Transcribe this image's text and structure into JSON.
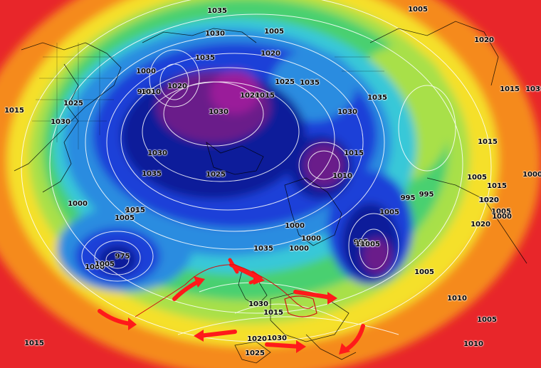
{
  "map": {
    "colors": {
      "outer_red": "#e8262a",
      "orange": "#f58a1f",
      "yellow": "#f5e02a",
      "light_green": "#a8e04a",
      "green": "#48d070",
      "cyan": "#38c8d8",
      "light_blue": "#2a8ce0",
      "blue": "#1a3fd8",
      "navy": "#101a9a",
      "purple": "#6a1a8a",
      "magenta": "#9a1a9a",
      "arrow": "#ff1a1a"
    },
    "pressure_labels": [
      "1035",
      "1005",
      "1005",
      "1030",
      "1020",
      "1035",
      "1020",
      "1025",
      "1035",
      "1000",
      "995",
      "1010",
      "1020",
      "1020",
      "1015",
      "1030",
      "1030",
      "1035",
      "1015",
      "1025",
      "1030",
      "1015",
      "1030",
      "1015",
      "1035",
      "1030",
      "1025",
      "1010",
      "1000",
      "1015",
      "1005",
      "1015",
      "995",
      "1010",
      "1005",
      "995",
      "1020",
      "1005",
      "1000",
      "1000",
      "995",
      "1005",
      "1000",
      "1000",
      "975",
      "1000",
      "1030",
      "1010",
      "1015",
      "1020",
      "1005",
      "1000",
      "995",
      "1035",
      "1035",
      "1030",
      "1025",
      "1020",
      "1015",
      "1005",
      "1005",
      "1010",
      "1005",
      "1015"
    ]
  }
}
